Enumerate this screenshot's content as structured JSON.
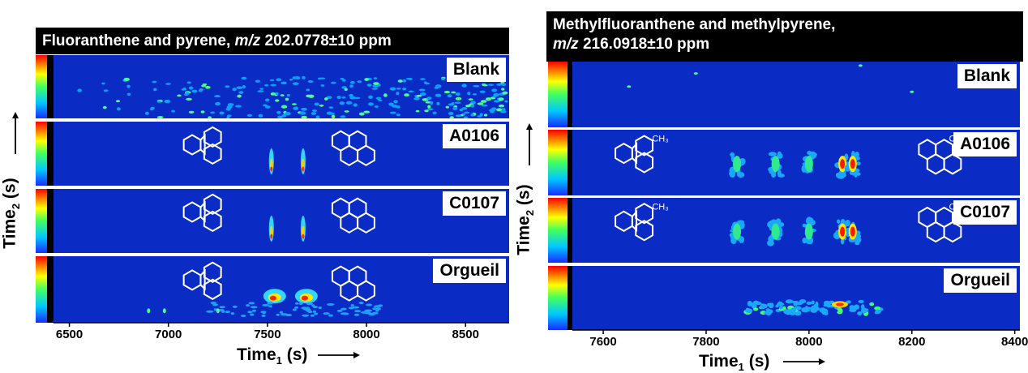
{
  "chart_data": [
    {
      "type": "heatmap",
      "title_main": "Fluoranthene and pyrene, ",
      "title_mz": "m/z",
      "title_rest": " 202.0778±10 ppm",
      "xlabel_main": "Time",
      "xlabel_sub": "1",
      "xlabel_unit": " (s)",
      "ylabel_main": "Time",
      "ylabel_sub": "2",
      "ylabel_unit": " (s)",
      "xlim": [
        6420,
        8720
      ],
      "xticks": [
        "6500",
        "7000",
        "7500",
        "8000",
        "8500"
      ],
      "xtick_values": [
        6500,
        7000,
        7500,
        8000,
        8500
      ],
      "samples": [
        "Blank",
        "A0106",
        "C0107",
        "Orgueil"
      ],
      "peaks_approx_s": [
        7520,
        7680
      ]
    },
    {
      "type": "heatmap",
      "title_line1": "Methylfluoranthene and methylpyrene,",
      "title_mz": "m/z",
      "title_rest": " 216.0918±10 ppm",
      "xlabel_main": "Time",
      "xlabel_sub": "1",
      "xlabel_unit": " (s)",
      "ylabel_main": "Time",
      "ylabel_sub": "2",
      "ylabel_unit": " (s)",
      "xlim": [
        7540,
        8410
      ],
      "xticks": [
        "7600",
        "7800",
        "8000",
        "8200",
        "8400"
      ],
      "xtick_values": [
        7600,
        7800,
        8000,
        8200,
        8400
      ],
      "samples": [
        "Blank",
        "A0106",
        "C0107",
        "Orgueil"
      ],
      "peaks_approx_s": [
        7860,
        7935,
        8000,
        8065,
        8085
      ],
      "methyl_label": "CH₃"
    }
  ]
}
